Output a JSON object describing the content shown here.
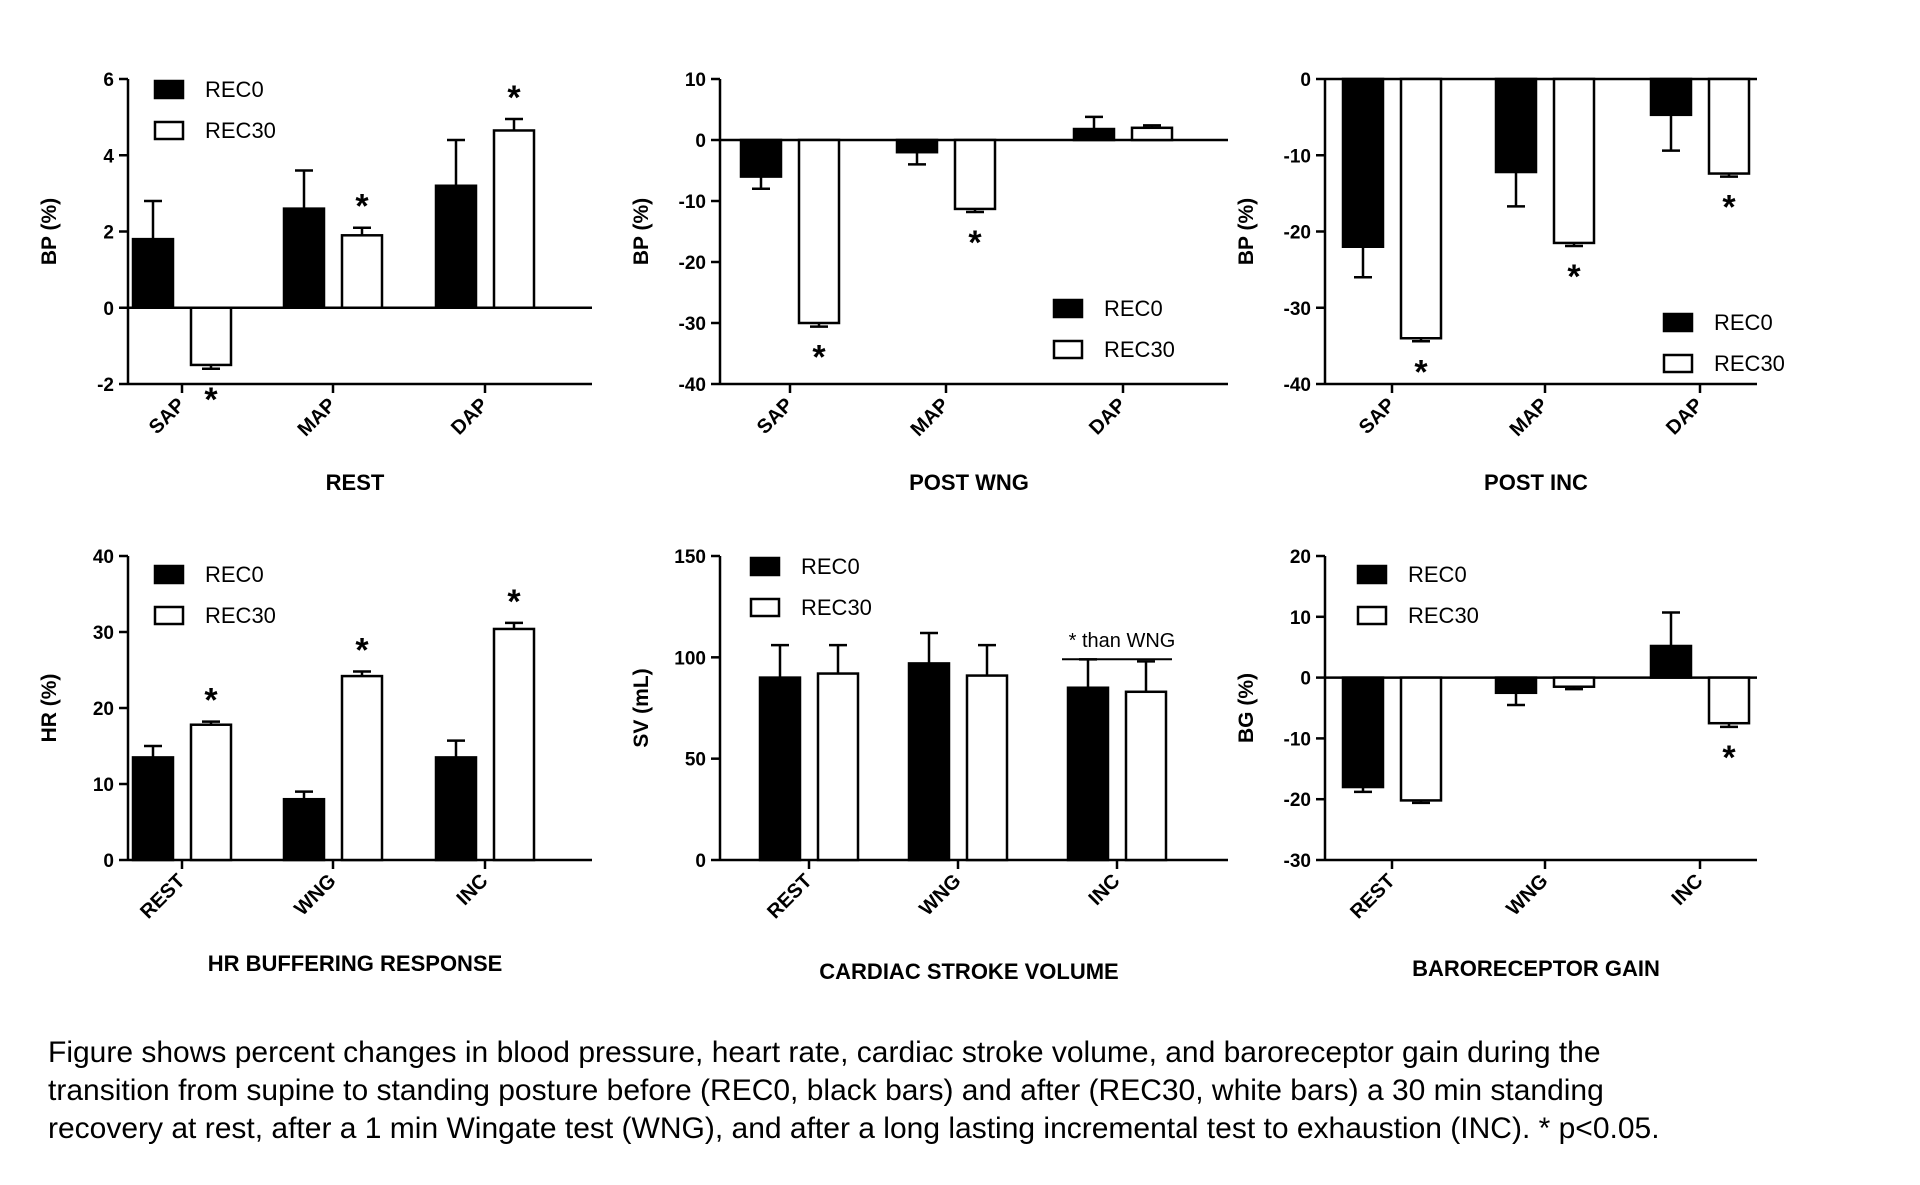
{
  "caption": {
    "lines": [
      "Figure shows percent changes in blood pressure, heart rate, cardiac stroke volume, and baroreceptor gain during the",
      "transition from supine to standing posture before (REC0, black bars) and after (REC30, white bars) a 30 min standing",
      "recovery at rest, after a 1 min Wingate test (WNG), and after a long lasting incremental test to exhaustion (INC). * p<0.05."
    ]
  },
  "colors": {
    "rec0": "#000000",
    "rec30": "#ffffff",
    "axis": "#000000"
  },
  "chart_data": [
    {
      "type": "bar",
      "title": "REST",
      "ylabel": "BP (%)",
      "categories": [
        "SAP",
        "MAP",
        "DAP"
      ],
      "ylim": [
        -2,
        6
      ],
      "yticks": [
        -2,
        0,
        2,
        4,
        6
      ],
      "legend": "top-left",
      "series": [
        {
          "name": "REC0",
          "values": [
            1.8,
            2.6,
            3.2
          ],
          "errors": [
            1.0,
            1.0,
            1.2
          ]
        },
        {
          "name": "REC30",
          "values": [
            -1.5,
            1.9,
            4.65
          ],
          "errors": [
            0.1,
            0.2,
            0.3
          ]
        }
      ],
      "significance": [
        {
          "category": "SAP",
          "series": "REC30",
          "label": "*"
        },
        {
          "category": "MAP",
          "series": "REC30",
          "label": "*"
        },
        {
          "category": "DAP",
          "series": "REC30",
          "label": "*"
        }
      ]
    },
    {
      "type": "bar",
      "title": "POST WNG",
      "ylabel": "BP (%)",
      "categories": [
        "SAP",
        "MAP",
        "DAP"
      ],
      "ylim": [
        -40,
        10
      ],
      "yticks": [
        -40,
        -30,
        -20,
        -10,
        0,
        10
      ],
      "legend": "bottom-right",
      "series": [
        {
          "name": "REC0",
          "values": [
            -6,
            -2,
            1.8
          ],
          "errors": [
            2,
            2,
            2
          ]
        },
        {
          "name": "REC30",
          "values": [
            -30,
            -11.3,
            2
          ],
          "errors": [
            0.6,
            0.5,
            0.4
          ]
        }
      ],
      "significance": [
        {
          "category": "SAP",
          "series": "REC30",
          "label": "*"
        },
        {
          "category": "MAP",
          "series": "REC30",
          "label": "*"
        }
      ]
    },
    {
      "type": "bar",
      "title": "POST INC",
      "ylabel": "BP (%)",
      "categories": [
        "SAP",
        "MAP",
        "DAP"
      ],
      "ylim": [
        -40,
        0
      ],
      "yticks": [
        -40,
        -30,
        -20,
        -10,
        0
      ],
      "legend": "bottom-right",
      "series": [
        {
          "name": "REC0",
          "values": [
            -22,
            -12.2,
            -4.7
          ],
          "errors": [
            4,
            4.5,
            4.7
          ]
        },
        {
          "name": "REC30",
          "values": [
            -34,
            -21.5,
            -12.4
          ],
          "errors": [
            0.4,
            0.4,
            0.4
          ]
        }
      ],
      "significance": [
        {
          "category": "SAP",
          "series": "REC30",
          "label": "*"
        },
        {
          "category": "MAP",
          "series": "REC30",
          "label": "*"
        },
        {
          "category": "DAP",
          "series": "REC30",
          "label": "*"
        }
      ]
    },
    {
      "type": "bar",
      "title": "HR BUFFERING RESPONSE",
      "ylabel": "HR (%)",
      "categories": [
        "REST",
        "WNG",
        "INC"
      ],
      "ylim": [
        0,
        40
      ],
      "yticks": [
        0,
        10,
        20,
        30,
        40
      ],
      "legend": "top-left",
      "series": [
        {
          "name": "REC0",
          "values": [
            13.5,
            8,
            13.5
          ],
          "errors": [
            1.5,
            1,
            2.2
          ]
        },
        {
          "name": "REC30",
          "values": [
            17.8,
            24.2,
            30.4
          ],
          "errors": [
            0.4,
            0.6,
            0.8
          ]
        }
      ],
      "significance": [
        {
          "category": "REST",
          "series": "REC30",
          "label": "*"
        },
        {
          "category": "WNG",
          "series": "REC30",
          "label": "*"
        },
        {
          "category": "INC",
          "series": "REC30",
          "label": "*"
        }
      ]
    },
    {
      "type": "bar",
      "title": "CARDIAC STROKE VOLUME",
      "ylabel": "SV (mL)",
      "categories": [
        "REST",
        "WNG",
        "INC"
      ],
      "ylim": [
        0,
        150
      ],
      "yticks": [
        0,
        50,
        100,
        150
      ],
      "legend": "top-left",
      "series": [
        {
          "name": "REC0",
          "values": [
            90,
            97,
            85
          ],
          "errors": [
            16,
            15,
            14
          ]
        },
        {
          "name": "REC30",
          "values": [
            92,
            91,
            83
          ],
          "errors": [
            14,
            15,
            15
          ]
        }
      ],
      "bracket": {
        "category": "INC",
        "label": "* than WNG"
      }
    },
    {
      "type": "bar",
      "title": "BARORECEPTOR GAIN",
      "ylabel": "BG (%)",
      "categories": [
        "REST",
        "WNG",
        "INC"
      ],
      "ylim": [
        -30,
        20
      ],
      "yticks": [
        -30,
        -20,
        -10,
        0,
        10,
        20
      ],
      "legend": "top-left",
      "series": [
        {
          "name": "REC0",
          "values": [
            -18,
            -2.5,
            5.2
          ],
          "errors": [
            0.8,
            2,
            5.5
          ]
        },
        {
          "name": "REC30",
          "values": [
            -20.2,
            -1.5,
            -7.5
          ],
          "errors": [
            0.4,
            0.4,
            0.6
          ]
        }
      ],
      "significance": [
        {
          "category": "INC",
          "series": "REC30",
          "label": "*"
        }
      ]
    }
  ]
}
